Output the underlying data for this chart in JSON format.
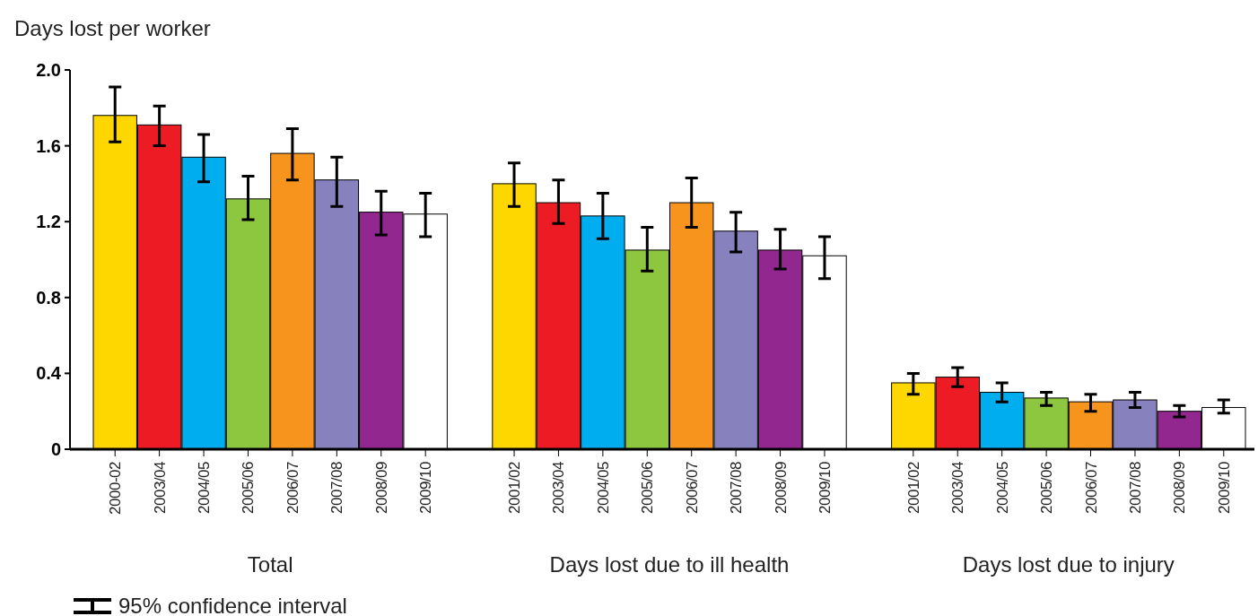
{
  "chart_data": {
    "type": "bar",
    "ylabel": "Days lost per worker",
    "categories": [
      "2000-02",
      "2003/04",
      "2004/05",
      "2005/06",
      "2006/07",
      "2007/08",
      "2008/09",
      "2009/10",
      null,
      "2001/02",
      "2003/04",
      "2004/05",
      "2005/06",
      "2006/07",
      "2007/08",
      "2008/09",
      "2009/10",
      null,
      "2001/02",
      "2003/04",
      "2004/05",
      "2005/06",
      "2006/07",
      "2007/08",
      "2008/09",
      "2009/10"
    ],
    "values": [
      1.76,
      1.71,
      1.54,
      1.32,
      1.56,
      1.42,
      1.25,
      1.24,
      null,
      1.4,
      1.3,
      1.23,
      1.05,
      1.3,
      1.15,
      1.05,
      1.02,
      null,
      0.35,
      0.38,
      0.3,
      0.27,
      0.25,
      0.26,
      0.2,
      0.22
    ],
    "errors": [
      [
        1.62,
        1.91
      ],
      [
        1.6,
        1.81
      ],
      [
        1.41,
        1.66
      ],
      [
        1.21,
        1.44
      ],
      [
        1.42,
        1.69
      ],
      [
        1.28,
        1.54
      ],
      [
        1.13,
        1.36
      ],
      [
        1.12,
        1.35
      ],
      null,
      [
        1.28,
        1.51
      ],
      [
        1.19,
        1.42
      ],
      [
        1.11,
        1.35
      ],
      [
        0.94,
        1.17
      ],
      [
        1.17,
        1.43
      ],
      [
        1.04,
        1.25
      ],
      [
        0.95,
        1.16
      ],
      [
        0.9,
        1.12
      ],
      null,
      [
        0.29,
        0.4
      ],
      [
        0.33,
        0.43
      ],
      [
        0.25,
        0.35
      ],
      [
        0.23,
        0.3
      ],
      [
        0.2,
        0.29
      ],
      [
        0.22,
        0.3
      ],
      [
        0.17,
        0.23
      ],
      [
        0.19,
        0.26
      ]
    ],
    "colors": [
      "#ffd700",
      "#ed1c24",
      "#00aeef",
      "#8dc63f",
      "#f7941d",
      "#8781bd",
      "#92278f",
      "#ffffff",
      null,
      "#ffd700",
      "#ed1c24",
      "#00aeef",
      "#8dc63f",
      "#f7941d",
      "#8781bd",
      "#92278f",
      "#ffffff",
      null,
      "#ffd700",
      "#ed1c24",
      "#00aeef",
      "#8dc63f",
      "#f7941d",
      "#8781bd",
      "#92278f",
      "#ffffff"
    ],
    "ylim": [
      0,
      2
    ],
    "yticks": [
      0,
      0.4,
      0.8,
      1.2,
      1.6,
      {
        "value": 2,
        "label": "2.0"
      }
    ],
    "grid": false,
    "annotations": [
      "Total",
      "Days lost due to ill health",
      "Days lost due to injury",
      "95% confidence interval"
    ]
  }
}
